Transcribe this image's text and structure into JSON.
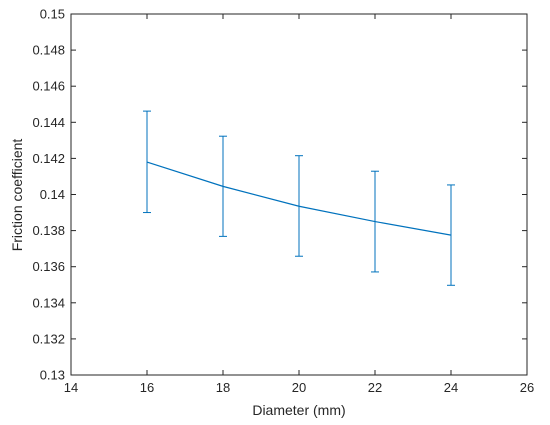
{
  "chart_data": {
    "type": "line",
    "xlabel": "Diameter (mm)",
    "ylabel": "Friction coefficient",
    "xlim": [
      14,
      26
    ],
    "ylim": [
      0.13,
      0.15
    ],
    "x_ticks": [
      "14",
      "16",
      "18",
      "20",
      "22",
      "24",
      "26"
    ],
    "y_ticks": [
      "0.13",
      "0.132",
      "0.134",
      "0.136",
      "0.138",
      "0.14",
      "0.142",
      "0.144",
      "0.146",
      "0.148",
      "0.15"
    ],
    "grid": false,
    "series": [
      {
        "x": [
          16,
          18,
          20,
          22,
          24
        ],
        "y": [
          0.1418,
          0.14045,
          0.13935,
          0.1385,
          0.13775
        ],
        "y_err_low": [
          0.139,
          0.13768,
          0.13658,
          0.13571,
          0.13497
        ],
        "y_err_high": [
          0.14462,
          0.14323,
          0.14215,
          0.14129,
          0.14053
        ],
        "color": "#0072bd"
      }
    ]
  }
}
